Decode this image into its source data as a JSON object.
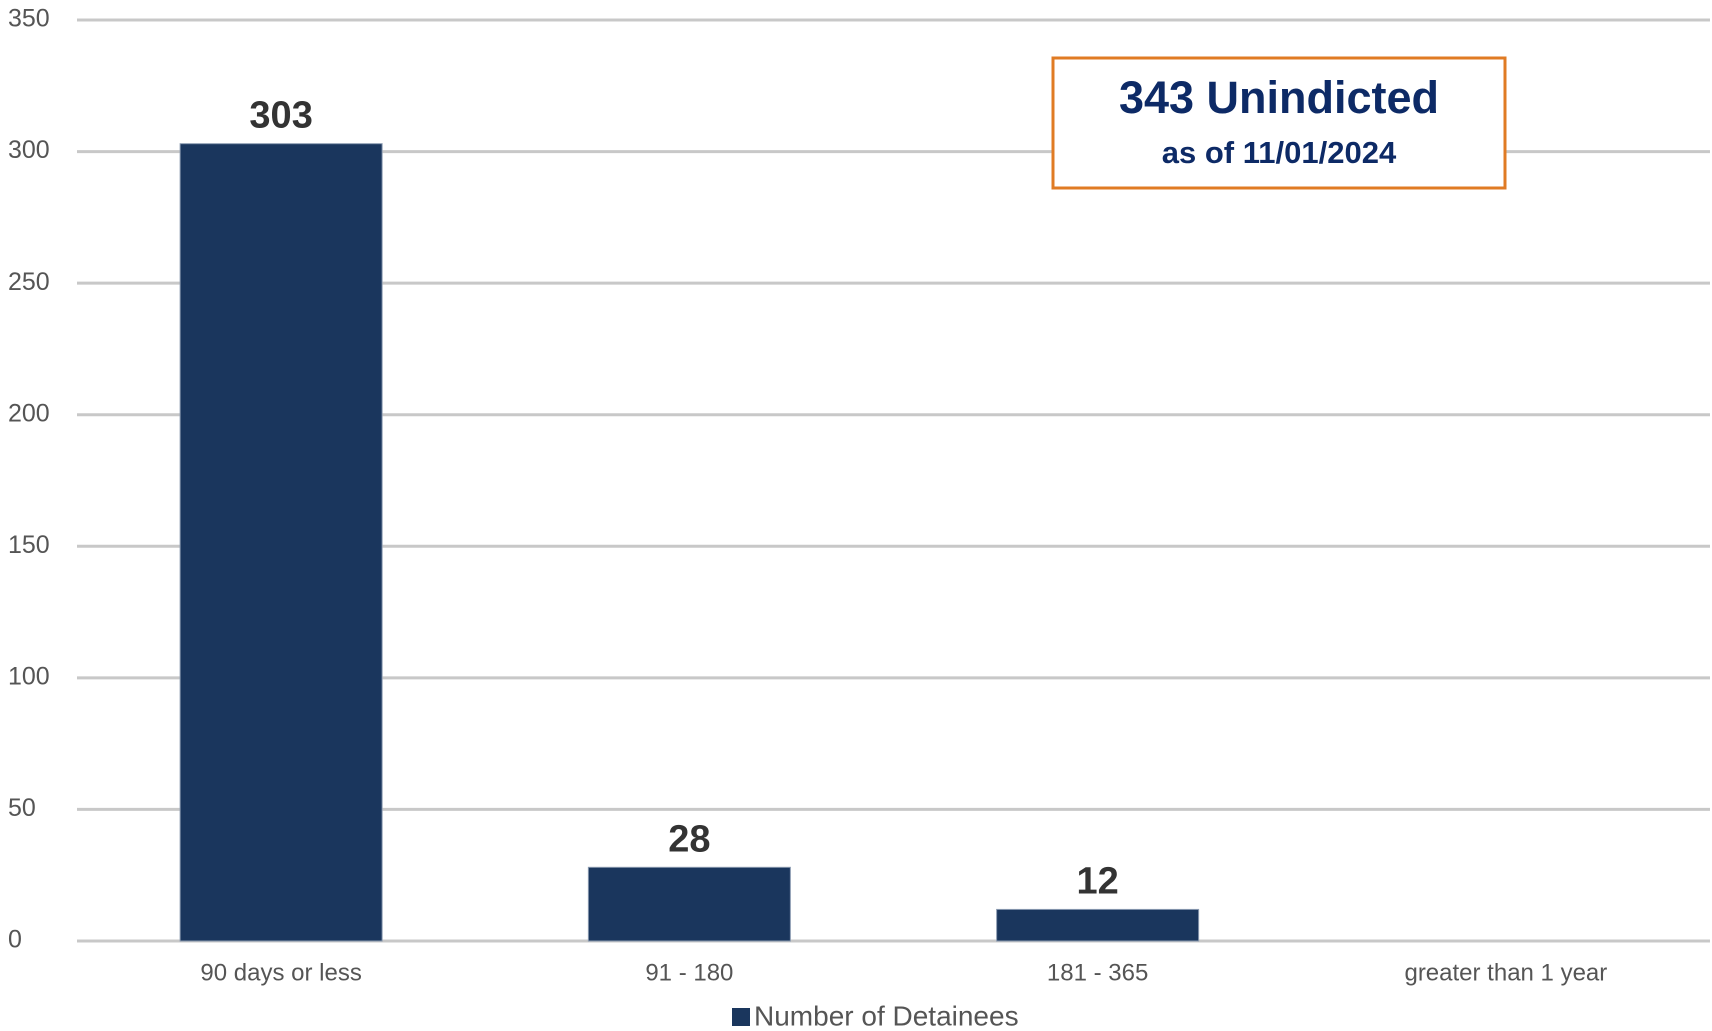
{
  "chart_data": {
    "type": "bar",
    "categories": [
      "90 days or less",
      "91 - 180",
      "181 - 365",
      "greater than 1 year"
    ],
    "series": [
      {
        "name": "Number of Detainees",
        "color": "#1a365d",
        "values": [
          303,
          28,
          12,
          null
        ]
      }
    ],
    "ylim": [
      0,
      350
    ],
    "yticks": [
      0,
      50,
      100,
      150,
      200,
      250,
      300,
      350
    ],
    "grid": true,
    "annotation": {
      "title": "343 Unindicted",
      "subtitle": "as of 11/01/2024",
      "border_color": "#e07b24",
      "text_color": "#0d2a66"
    },
    "legend": "bottom"
  }
}
